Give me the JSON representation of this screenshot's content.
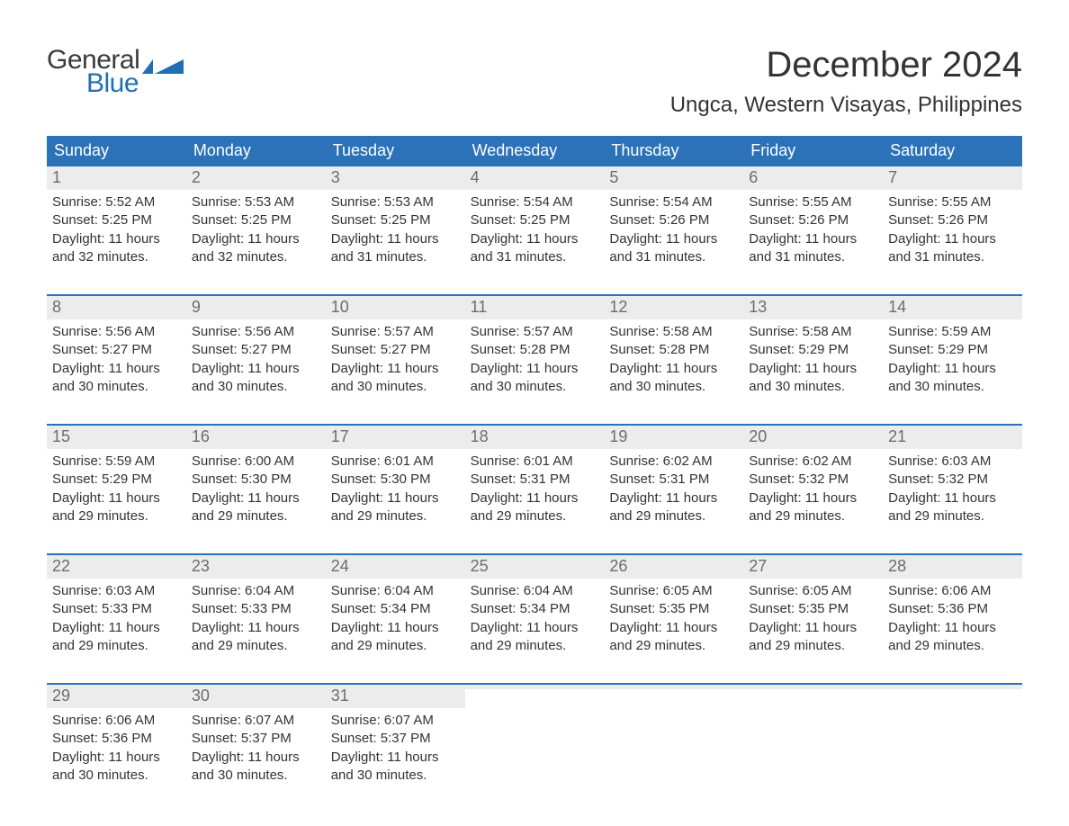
{
  "brand": {
    "word1": "General",
    "word2": "Blue"
  },
  "title": "December 2024",
  "location": "Ungca, Western Visayas, Philippines",
  "colors": {
    "header_bg": "#2b72b8",
    "header_text": "#ffffff",
    "daynum_bg": "#ececec",
    "daynum_text": "#6d6d6d",
    "body_text": "#333333",
    "week_rule": "#2b72b8",
    "brand_blue": "#1f6fb2",
    "brand_gray": "#3a3a3a",
    "page_bg": "#ffffff"
  },
  "day_headers": [
    "Sunday",
    "Monday",
    "Tuesday",
    "Wednesday",
    "Thursday",
    "Friday",
    "Saturday"
  ],
  "weeks": [
    [
      {
        "n": "1",
        "sr": "Sunrise: 5:52 AM",
        "ss": "Sunset: 5:25 PM",
        "d1": "Daylight: 11 hours",
        "d2": "and 32 minutes."
      },
      {
        "n": "2",
        "sr": "Sunrise: 5:53 AM",
        "ss": "Sunset: 5:25 PM",
        "d1": "Daylight: 11 hours",
        "d2": "and 32 minutes."
      },
      {
        "n": "3",
        "sr": "Sunrise: 5:53 AM",
        "ss": "Sunset: 5:25 PM",
        "d1": "Daylight: 11 hours",
        "d2": "and 31 minutes."
      },
      {
        "n": "4",
        "sr": "Sunrise: 5:54 AM",
        "ss": "Sunset: 5:25 PM",
        "d1": "Daylight: 11 hours",
        "d2": "and 31 minutes."
      },
      {
        "n": "5",
        "sr": "Sunrise: 5:54 AM",
        "ss": "Sunset: 5:26 PM",
        "d1": "Daylight: 11 hours",
        "d2": "and 31 minutes."
      },
      {
        "n": "6",
        "sr": "Sunrise: 5:55 AM",
        "ss": "Sunset: 5:26 PM",
        "d1": "Daylight: 11 hours",
        "d2": "and 31 minutes."
      },
      {
        "n": "7",
        "sr": "Sunrise: 5:55 AM",
        "ss": "Sunset: 5:26 PM",
        "d1": "Daylight: 11 hours",
        "d2": "and 31 minutes."
      }
    ],
    [
      {
        "n": "8",
        "sr": "Sunrise: 5:56 AM",
        "ss": "Sunset: 5:27 PM",
        "d1": "Daylight: 11 hours",
        "d2": "and 30 minutes."
      },
      {
        "n": "9",
        "sr": "Sunrise: 5:56 AM",
        "ss": "Sunset: 5:27 PM",
        "d1": "Daylight: 11 hours",
        "d2": "and 30 minutes."
      },
      {
        "n": "10",
        "sr": "Sunrise: 5:57 AM",
        "ss": "Sunset: 5:27 PM",
        "d1": "Daylight: 11 hours",
        "d2": "and 30 minutes."
      },
      {
        "n": "11",
        "sr": "Sunrise: 5:57 AM",
        "ss": "Sunset: 5:28 PM",
        "d1": "Daylight: 11 hours",
        "d2": "and 30 minutes."
      },
      {
        "n": "12",
        "sr": "Sunrise: 5:58 AM",
        "ss": "Sunset: 5:28 PM",
        "d1": "Daylight: 11 hours",
        "d2": "and 30 minutes."
      },
      {
        "n": "13",
        "sr": "Sunrise: 5:58 AM",
        "ss": "Sunset: 5:29 PM",
        "d1": "Daylight: 11 hours",
        "d2": "and 30 minutes."
      },
      {
        "n": "14",
        "sr": "Sunrise: 5:59 AM",
        "ss": "Sunset: 5:29 PM",
        "d1": "Daylight: 11 hours",
        "d2": "and 30 minutes."
      }
    ],
    [
      {
        "n": "15",
        "sr": "Sunrise: 5:59 AM",
        "ss": "Sunset: 5:29 PM",
        "d1": "Daylight: 11 hours",
        "d2": "and 29 minutes."
      },
      {
        "n": "16",
        "sr": "Sunrise: 6:00 AM",
        "ss": "Sunset: 5:30 PM",
        "d1": "Daylight: 11 hours",
        "d2": "and 29 minutes."
      },
      {
        "n": "17",
        "sr": "Sunrise: 6:01 AM",
        "ss": "Sunset: 5:30 PM",
        "d1": "Daylight: 11 hours",
        "d2": "and 29 minutes."
      },
      {
        "n": "18",
        "sr": "Sunrise: 6:01 AM",
        "ss": "Sunset: 5:31 PM",
        "d1": "Daylight: 11 hours",
        "d2": "and 29 minutes."
      },
      {
        "n": "19",
        "sr": "Sunrise: 6:02 AM",
        "ss": "Sunset: 5:31 PM",
        "d1": "Daylight: 11 hours",
        "d2": "and 29 minutes."
      },
      {
        "n": "20",
        "sr": "Sunrise: 6:02 AM",
        "ss": "Sunset: 5:32 PM",
        "d1": "Daylight: 11 hours",
        "d2": "and 29 minutes."
      },
      {
        "n": "21",
        "sr": "Sunrise: 6:03 AM",
        "ss": "Sunset: 5:32 PM",
        "d1": "Daylight: 11 hours",
        "d2": "and 29 minutes."
      }
    ],
    [
      {
        "n": "22",
        "sr": "Sunrise: 6:03 AM",
        "ss": "Sunset: 5:33 PM",
        "d1": "Daylight: 11 hours",
        "d2": "and 29 minutes."
      },
      {
        "n": "23",
        "sr": "Sunrise: 6:04 AM",
        "ss": "Sunset: 5:33 PM",
        "d1": "Daylight: 11 hours",
        "d2": "and 29 minutes."
      },
      {
        "n": "24",
        "sr": "Sunrise: 6:04 AM",
        "ss": "Sunset: 5:34 PM",
        "d1": "Daylight: 11 hours",
        "d2": "and 29 minutes."
      },
      {
        "n": "25",
        "sr": "Sunrise: 6:04 AM",
        "ss": "Sunset: 5:34 PM",
        "d1": "Daylight: 11 hours",
        "d2": "and 29 minutes."
      },
      {
        "n": "26",
        "sr": "Sunrise: 6:05 AM",
        "ss": "Sunset: 5:35 PM",
        "d1": "Daylight: 11 hours",
        "d2": "and 29 minutes."
      },
      {
        "n": "27",
        "sr": "Sunrise: 6:05 AM",
        "ss": "Sunset: 5:35 PM",
        "d1": "Daylight: 11 hours",
        "d2": "and 29 minutes."
      },
      {
        "n": "28",
        "sr": "Sunrise: 6:06 AM",
        "ss": "Sunset: 5:36 PM",
        "d1": "Daylight: 11 hours",
        "d2": "and 29 minutes."
      }
    ],
    [
      {
        "n": "29",
        "sr": "Sunrise: 6:06 AM",
        "ss": "Sunset: 5:36 PM",
        "d1": "Daylight: 11 hours",
        "d2": "and 30 minutes."
      },
      {
        "n": "30",
        "sr": "Sunrise: 6:07 AM",
        "ss": "Sunset: 5:37 PM",
        "d1": "Daylight: 11 hours",
        "d2": "and 30 minutes."
      },
      {
        "n": "31",
        "sr": "Sunrise: 6:07 AM",
        "ss": "Sunset: 5:37 PM",
        "d1": "Daylight: 11 hours",
        "d2": "and 30 minutes."
      },
      {
        "empty": true
      },
      {
        "empty": true
      },
      {
        "empty": true
      },
      {
        "empty": true
      }
    ]
  ]
}
